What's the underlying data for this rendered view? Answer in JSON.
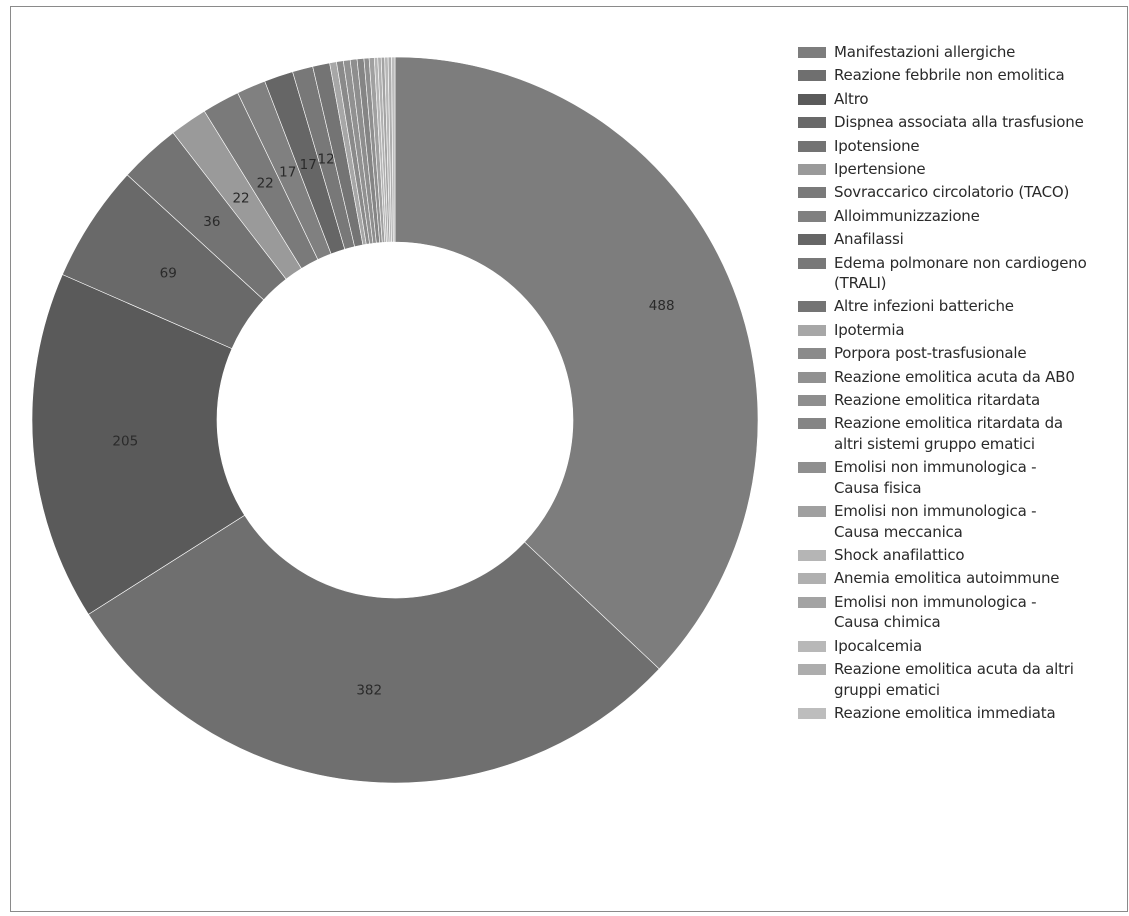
{
  "chart_data": {
    "type": "pie",
    "donut": true,
    "title": "",
    "series": [
      {
        "name": "Manifestazioni allergiche",
        "value": 488,
        "color": "#7d7d7d"
      },
      {
        "name": "Reazione febbrile non emolitica",
        "value": 382,
        "color": "#6f6f6f"
      },
      {
        "name": "Altro",
        "value": 205,
        "color": "#5a5a5a"
      },
      {
        "name": "Dispnea associata alla trasfusione",
        "value": 69,
        "color": "#696969"
      },
      {
        "name": "Ipotensione",
        "value": 36,
        "color": "#737373"
      },
      {
        "name": "Ipertensione",
        "value": 22,
        "color": "#9a9a9a"
      },
      {
        "name": "Sovraccarico circolatorio (TACO)",
        "value": 22,
        "color": "#7a7a7a"
      },
      {
        "name": "Alloimmunizzazione",
        "value": 17,
        "color": "#808080"
      },
      {
        "name": "Anafilassi",
        "value": 17,
        "color": "#666666"
      },
      {
        "name": "Edema polmonare non cardiogeno\n(TRALI)",
        "value": 12,
        "color": "#787878"
      },
      {
        "name": "Altre infezioni batteriche",
        "value": 10,
        "color": "#747474"
      },
      {
        "name": "Ipotermia",
        "value": 4,
        "color": "#a7a7a7"
      },
      {
        "name": "Porpora post-trasfusionale",
        "value": 4,
        "color": "#8a8a8a"
      },
      {
        "name": "Reazione emolitica acuta da AB0",
        "value": 4,
        "color": "#919191"
      },
      {
        "name": "Reazione emolitica ritardata",
        "value": 4,
        "color": "#8e8e8e"
      },
      {
        "name": "Reazione emolitica ritardata da\naltri sistemi gruppo ematici",
        "value": 4,
        "color": "#858585"
      },
      {
        "name": "Emolisi non immunologica -\nCausa fisica",
        "value": 3,
        "color": "#8f8f8f"
      },
      {
        "name": "Emolisi non immunologica -\nCausa meccanica",
        "value": 3,
        "color": "#a0a0a0"
      },
      {
        "name": "Shock anafilattico",
        "value": 2,
        "color": "#b5b5b5"
      },
      {
        "name": "Anemia emolitica autoimmune",
        "value": 2,
        "color": "#b0b0b0"
      },
      {
        "name": "Emolisi non immunologica -\nCausa chimica",
        "value": 2,
        "color": "#a3a3a3"
      },
      {
        "name": "Ipocalcemia",
        "value": 2,
        "color": "#b8b8b8"
      },
      {
        "name": "Reazione emolitica acuta da altri\ngruppi ematici",
        "value": 2,
        "color": "#adadad"
      },
      {
        "name": "Reazione emolitica immediata",
        "value": 2,
        "color": "#bdbdbd"
      }
    ],
    "shown_labels": [
      "488",
      "382",
      "205",
      "69",
      "36",
      "22",
      "22",
      "17",
      "17",
      "12"
    ],
    "legend_position": "right",
    "start_angle": "top",
    "direction": "clockwise"
  }
}
